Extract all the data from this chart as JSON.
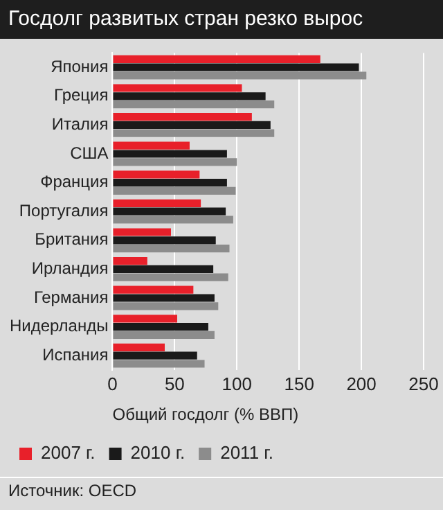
{
  "chart_data": {
    "type": "bar",
    "orientation": "horizontal",
    "title": "Госдолг развитых стран резко вырос",
    "xlabel": "Общий госдолг (% ВВП)",
    "categories": [
      "Япония",
      "Греция",
      "Италия",
      "США",
      "Франция",
      "Португалия",
      "Британия",
      "Ирландия",
      "Германия",
      "Нидерланды",
      "Испания"
    ],
    "series": [
      {
        "name": "2007 г.",
        "color": "#e8202a",
        "values": [
          167,
          104,
          112,
          62,
          70,
          71,
          47,
          28,
          65,
          52,
          42
        ]
      },
      {
        "name": "2010 г.",
        "color": "#1a1a1a",
        "values": [
          198,
          123,
          127,
          92,
          92,
          91,
          83,
          81,
          82,
          77,
          68
        ]
      },
      {
        "name": "2011 г.",
        "color": "#8c8c8c",
        "values": [
          204,
          130,
          130,
          100,
          99,
          97,
          94,
          93,
          85,
          82,
          74
        ]
      }
    ],
    "xlim": [
      0,
      250
    ],
    "xticks": [
      0,
      50,
      100,
      150,
      200,
      250
    ],
    "grid": "x",
    "legend": "bottom",
    "annotations": [
      "Источник: OECD"
    ]
  }
}
